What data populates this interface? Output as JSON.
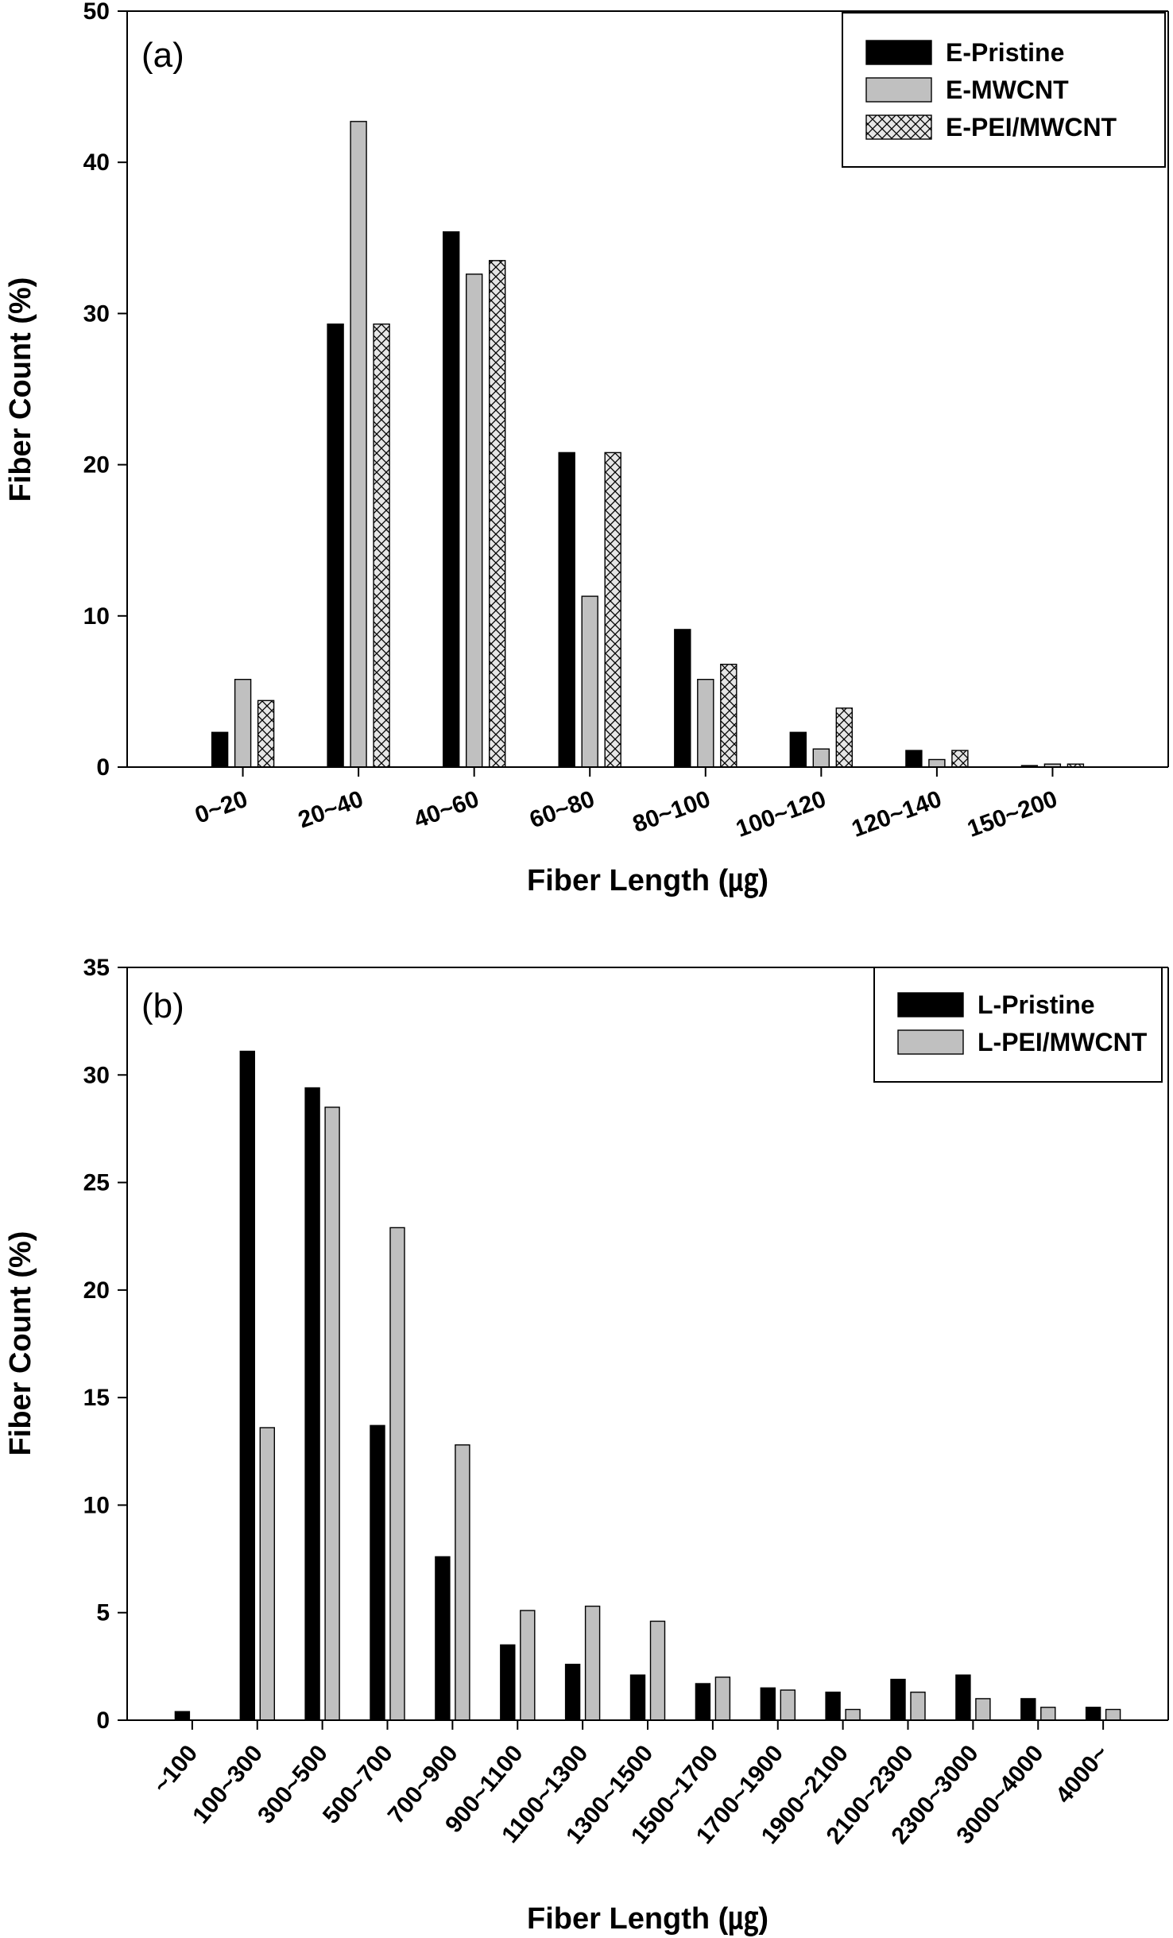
{
  "colors": {
    "pristine": "#000000",
    "mwcnt": "#c0c0c0",
    "pei_mwcnt_hatch_bg": "#e6e6e6"
  },
  "chart_data": [
    {
      "type": "bar",
      "panel_label": "(a)",
      "xlabel": "Fiber Length (㎍)",
      "ylabel": "Fiber Count (%)",
      "ylim": [
        0,
        50
      ],
      "yticks": [
        0,
        10,
        20,
        30,
        40,
        50
      ],
      "grid": false,
      "legend_position": "top-right",
      "categories": [
        "0~20",
        "20~40",
        "40~60",
        "60~80",
        "80~100",
        "100~120",
        "120~140",
        "150~200"
      ],
      "series": [
        {
          "name": "E-Pristine",
          "style": "solid-black",
          "values": [
            2.3,
            29.3,
            35.4,
            20.8,
            9.1,
            2.3,
            1.1,
            0.1
          ]
        },
        {
          "name": "E-MWCNT",
          "style": "solid-gray",
          "values": [
            5.8,
            42.7,
            32.6,
            11.3,
            5.8,
            1.2,
            0.5,
            0.2
          ]
        },
        {
          "name": "E-PEI/MWCNT",
          "style": "crosshatch",
          "values": [
            4.4,
            29.3,
            33.5,
            20.8,
            6.8,
            3.9,
            1.1,
            0.2
          ]
        }
      ]
    },
    {
      "type": "bar",
      "panel_label": "(b)",
      "xlabel": "Fiber Length (㎍)",
      "ylabel": "Fiber Count (%)",
      "ylim": [
        0,
        35
      ],
      "yticks": [
        0,
        5,
        10,
        15,
        20,
        25,
        30,
        35
      ],
      "grid": false,
      "legend_position": "top-right",
      "categories": [
        "~100",
        "100~300",
        "300~500",
        "500~700",
        "700~900",
        "900~1100",
        "1100~1300",
        "1300~1500",
        "1500~1700",
        "1700~1900",
        "1900~2100",
        "2100~2300",
        "2300~3000",
        "3000~4000",
        "4000~"
      ],
      "series": [
        {
          "name": "L-Pristine",
          "style": "solid-black",
          "values": [
            0.4,
            31.1,
            29.4,
            13.7,
            7.6,
            3.5,
            2.6,
            2.1,
            1.7,
            1.5,
            1.3,
            1.9,
            2.1,
            1.0,
            0.6
          ]
        },
        {
          "name": "L-PEI/MWCNT",
          "style": "solid-gray",
          "values": [
            0.0,
            13.6,
            28.5,
            22.9,
            12.8,
            5.1,
            5.3,
            4.6,
            2.0,
            1.4,
            0.5,
            1.3,
            1.0,
            0.6,
            0.5
          ]
        }
      ]
    }
  ]
}
